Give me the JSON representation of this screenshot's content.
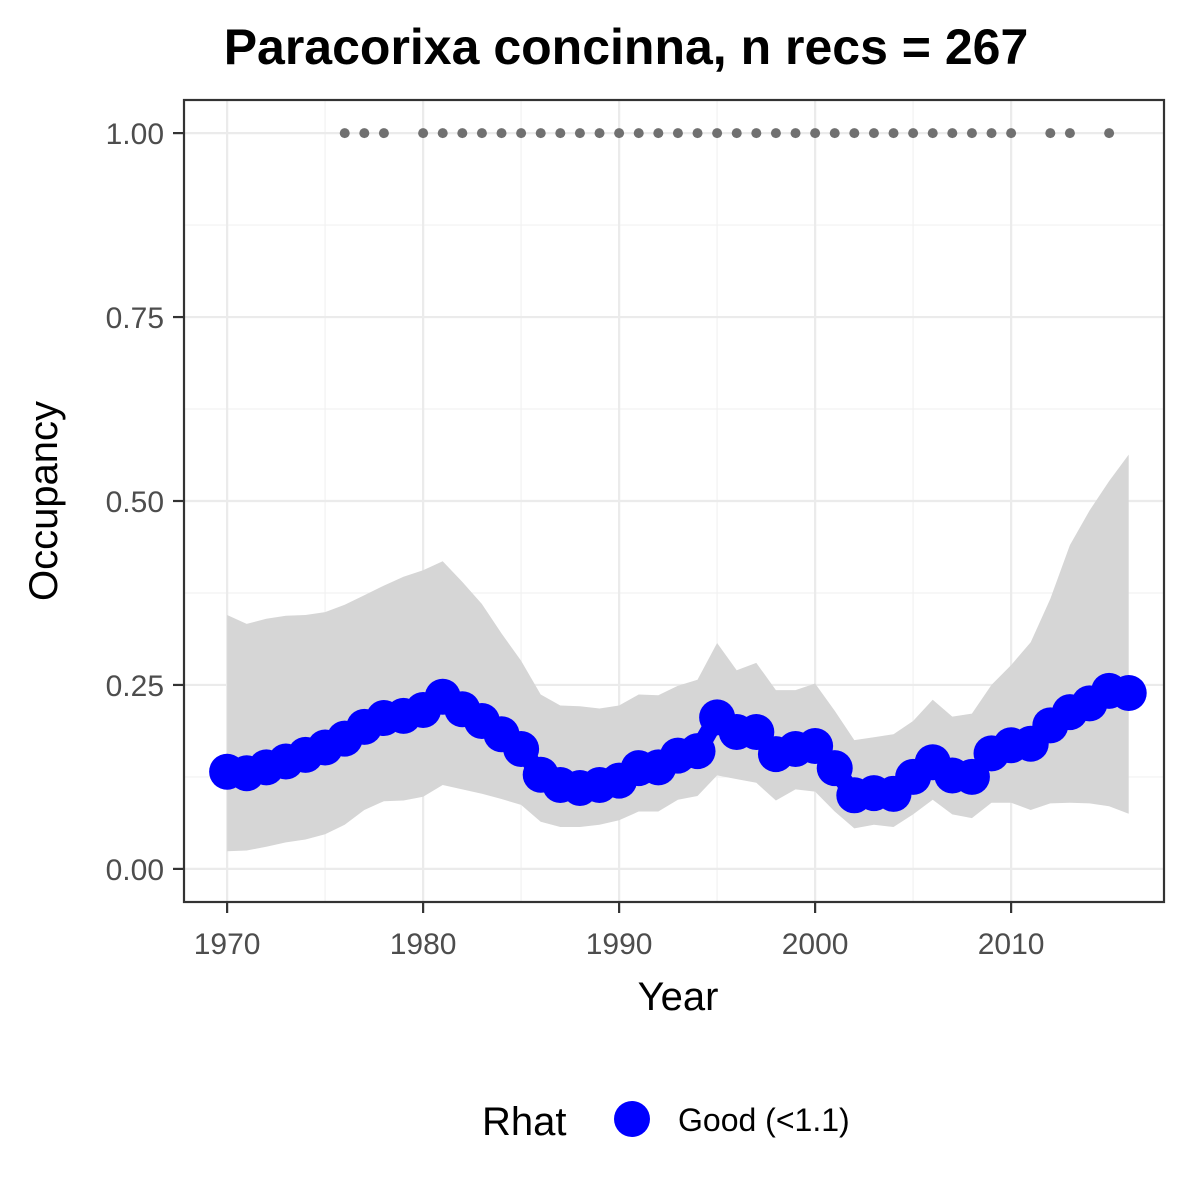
{
  "chart_data": {
    "type": "line",
    "title": "Paracorixa concinna, n recs = 267",
    "xlabel": "Year",
    "ylabel": "Occupancy",
    "xlim": [
      1967.8,
      2017.8
    ],
    "ylim": [
      -0.045,
      1.045
    ],
    "x_ticks": [
      1970,
      1980,
      1990,
      2000,
      2010
    ],
    "x_tick_labels": [
      "1970",
      "1980",
      "1990",
      "2000",
      "2010"
    ],
    "y_ticks": [
      0,
      0.25,
      0.5,
      0.75,
      1
    ],
    "y_tick_labels": [
      "0.00",
      "0.25",
      "0.50",
      "0.75",
      "1.00"
    ],
    "grid": true,
    "legend": {
      "title": "Rhat",
      "position": "bottom",
      "entries": [
        {
          "label": "Good (<1.1)",
          "color": "#0000ff"
        }
      ]
    },
    "colors": {
      "mean": "#0000ff",
      "ribbon": "#d6d6d6",
      "records": "#707070"
    },
    "series": [
      {
        "name": "Good (<1.1)",
        "x": [
          1970,
          1971,
          1972,
          1973,
          1974,
          1975,
          1976,
          1977,
          1978,
          1979,
          1980,
          1981,
          1982,
          1983,
          1984,
          1985,
          1986,
          1987,
          1988,
          1989,
          1990,
          1991,
          1992,
          1993,
          1994,
          1995,
          1996,
          1997,
          1998,
          1999,
          2000,
          2001,
          2002,
          2003,
          2004,
          2005,
          2006,
          2007,
          2008,
          2009,
          2010,
          2011,
          2012,
          2013,
          2014,
          2015,
          2016
        ],
        "mean": [
          0.132,
          0.13,
          0.138,
          0.146,
          0.155,
          0.165,
          0.177,
          0.193,
          0.205,
          0.208,
          0.216,
          0.234,
          0.217,
          0.201,
          0.183,
          0.163,
          0.128,
          0.114,
          0.11,
          0.114,
          0.12,
          0.137,
          0.138,
          0.154,
          0.16,
          0.206,
          0.186,
          0.186,
          0.156,
          0.163,
          0.167,
          0.137,
          0.1,
          0.103,
          0.102,
          0.125,
          0.145,
          0.127,
          0.125,
          0.157,
          0.168,
          0.17,
          0.195,
          0.213,
          0.225,
          0.242,
          0.239
        ],
        "lower": [
          0.024,
          0.025,
          0.03,
          0.036,
          0.04,
          0.047,
          0.06,
          0.08,
          0.092,
          0.093,
          0.098,
          0.114,
          0.108,
          0.102,
          0.095,
          0.087,
          0.064,
          0.057,
          0.057,
          0.06,
          0.066,
          0.078,
          0.078,
          0.094,
          0.099,
          0.127,
          0.122,
          0.117,
          0.093,
          0.108,
          0.105,
          0.078,
          0.055,
          0.06,
          0.057,
          0.074,
          0.094,
          0.074,
          0.069,
          0.09,
          0.09,
          0.08,
          0.089,
          0.09,
          0.089,
          0.085,
          0.075
        ],
        "upper": [
          0.345,
          0.333,
          0.34,
          0.344,
          0.345,
          0.349,
          0.359,
          0.372,
          0.385,
          0.397,
          0.406,
          0.418,
          0.39,
          0.36,
          0.32,
          0.283,
          0.237,
          0.222,
          0.221,
          0.218,
          0.222,
          0.237,
          0.236,
          0.249,
          0.257,
          0.307,
          0.27,
          0.28,
          0.243,
          0.243,
          0.252,
          0.215,
          0.175,
          0.179,
          0.183,
          0.201,
          0.23,
          0.207,
          0.211,
          0.25,
          0.277,
          0.308,
          0.367,
          0.44,
          0.487,
          0.527,
          0.563
        ]
      }
    ],
    "records": {
      "value": 1.0,
      "x": [
        1976,
        1977,
        1978,
        1980,
        1981,
        1982,
        1983,
        1984,
        1985,
        1986,
        1987,
        1988,
        1989,
        1990,
        1991,
        1992,
        1993,
        1994,
        1995,
        1996,
        1997,
        1998,
        1999,
        2000,
        2001,
        2002,
        2003,
        2004,
        2005,
        2006,
        2007,
        2008,
        2009,
        2010,
        2012,
        2013,
        2015
      ]
    }
  }
}
